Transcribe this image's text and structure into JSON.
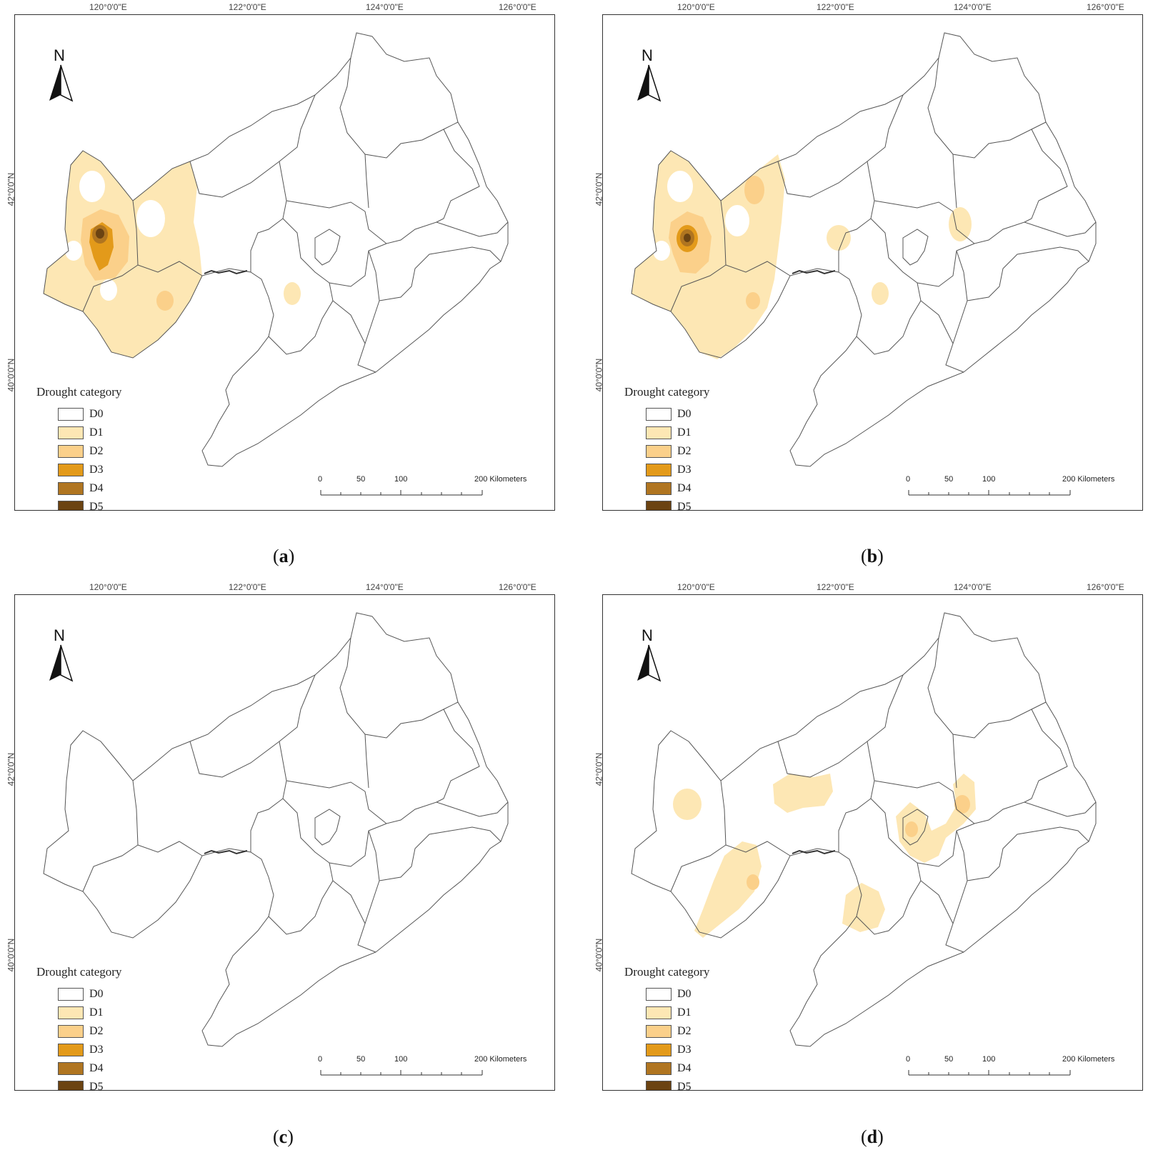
{
  "colors": {
    "D0": "#ffffff",
    "D1": "#fde7b4",
    "D2": "#fbd08a",
    "D3": "#e39a1a",
    "D4": "#b07520",
    "D5": "#6b4312",
    "border": "#555555"
  },
  "common": {
    "lon_labels": [
      "120°0'0\"E",
      "122°0'0\"E",
      "124°0'0\"E",
      "126°0'0\"E"
    ],
    "lat_labels": [
      "42°0'0\"N",
      "40°0'0\"N"
    ],
    "north_label": "N",
    "legend_title": "Drought category",
    "legend_items": [
      "D0",
      "D1",
      "D2",
      "D3",
      "D4",
      "D5"
    ],
    "scale_labels": [
      "0",
      "50",
      "100",
      "200 Kilometers"
    ]
  },
  "panels": [
    {
      "id": "a",
      "caption": "a"
    },
    {
      "id": "b",
      "caption": "b"
    },
    {
      "id": "c",
      "caption": "c"
    },
    {
      "id": "d",
      "caption": "d"
    }
  ]
}
